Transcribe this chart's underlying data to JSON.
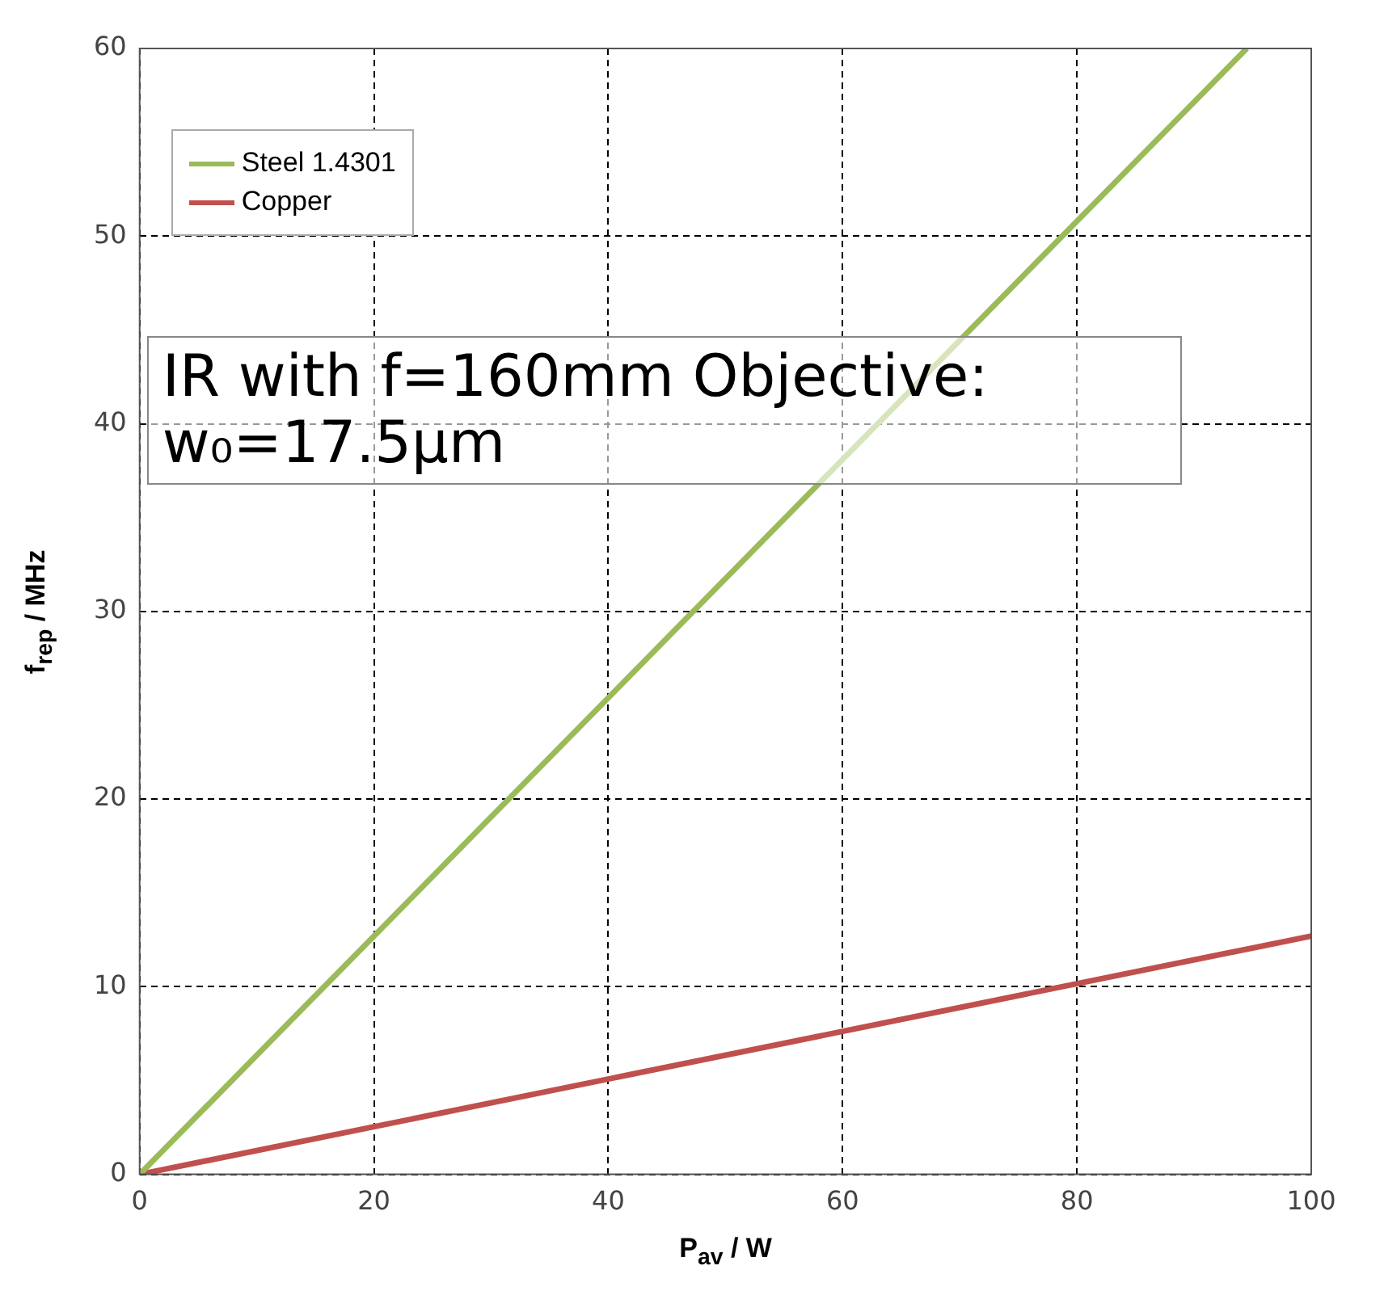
{
  "chart_data": {
    "type": "line",
    "xlabel": "P$_{av}$ / W",
    "ylabel": "f$_{rep}$ / MHz",
    "series": [
      {
        "name": "Steel 1.4301",
        "color": "#9bbb59",
        "x": [
          0,
          94.5
        ],
        "values": [
          0,
          60
        ]
      },
      {
        "name": "Copper",
        "color": "#c0504d",
        "x": [
          0,
          100
        ],
        "values": [
          0,
          12.7
        ]
      }
    ],
    "xlim": [
      0,
      100
    ],
    "xticks": [
      0,
      20,
      40,
      60,
      80,
      100
    ],
    "ylim": [
      0,
      60
    ],
    "yticks": [
      0,
      10,
      20,
      30,
      40,
      50,
      60
    ],
    "grid": true,
    "legend": "top left",
    "marker": "none",
    "line_style": "solid",
    "annotations": [
      "IR with f=160mm Objective: w₀=17.5μm"
    ]
  }
}
